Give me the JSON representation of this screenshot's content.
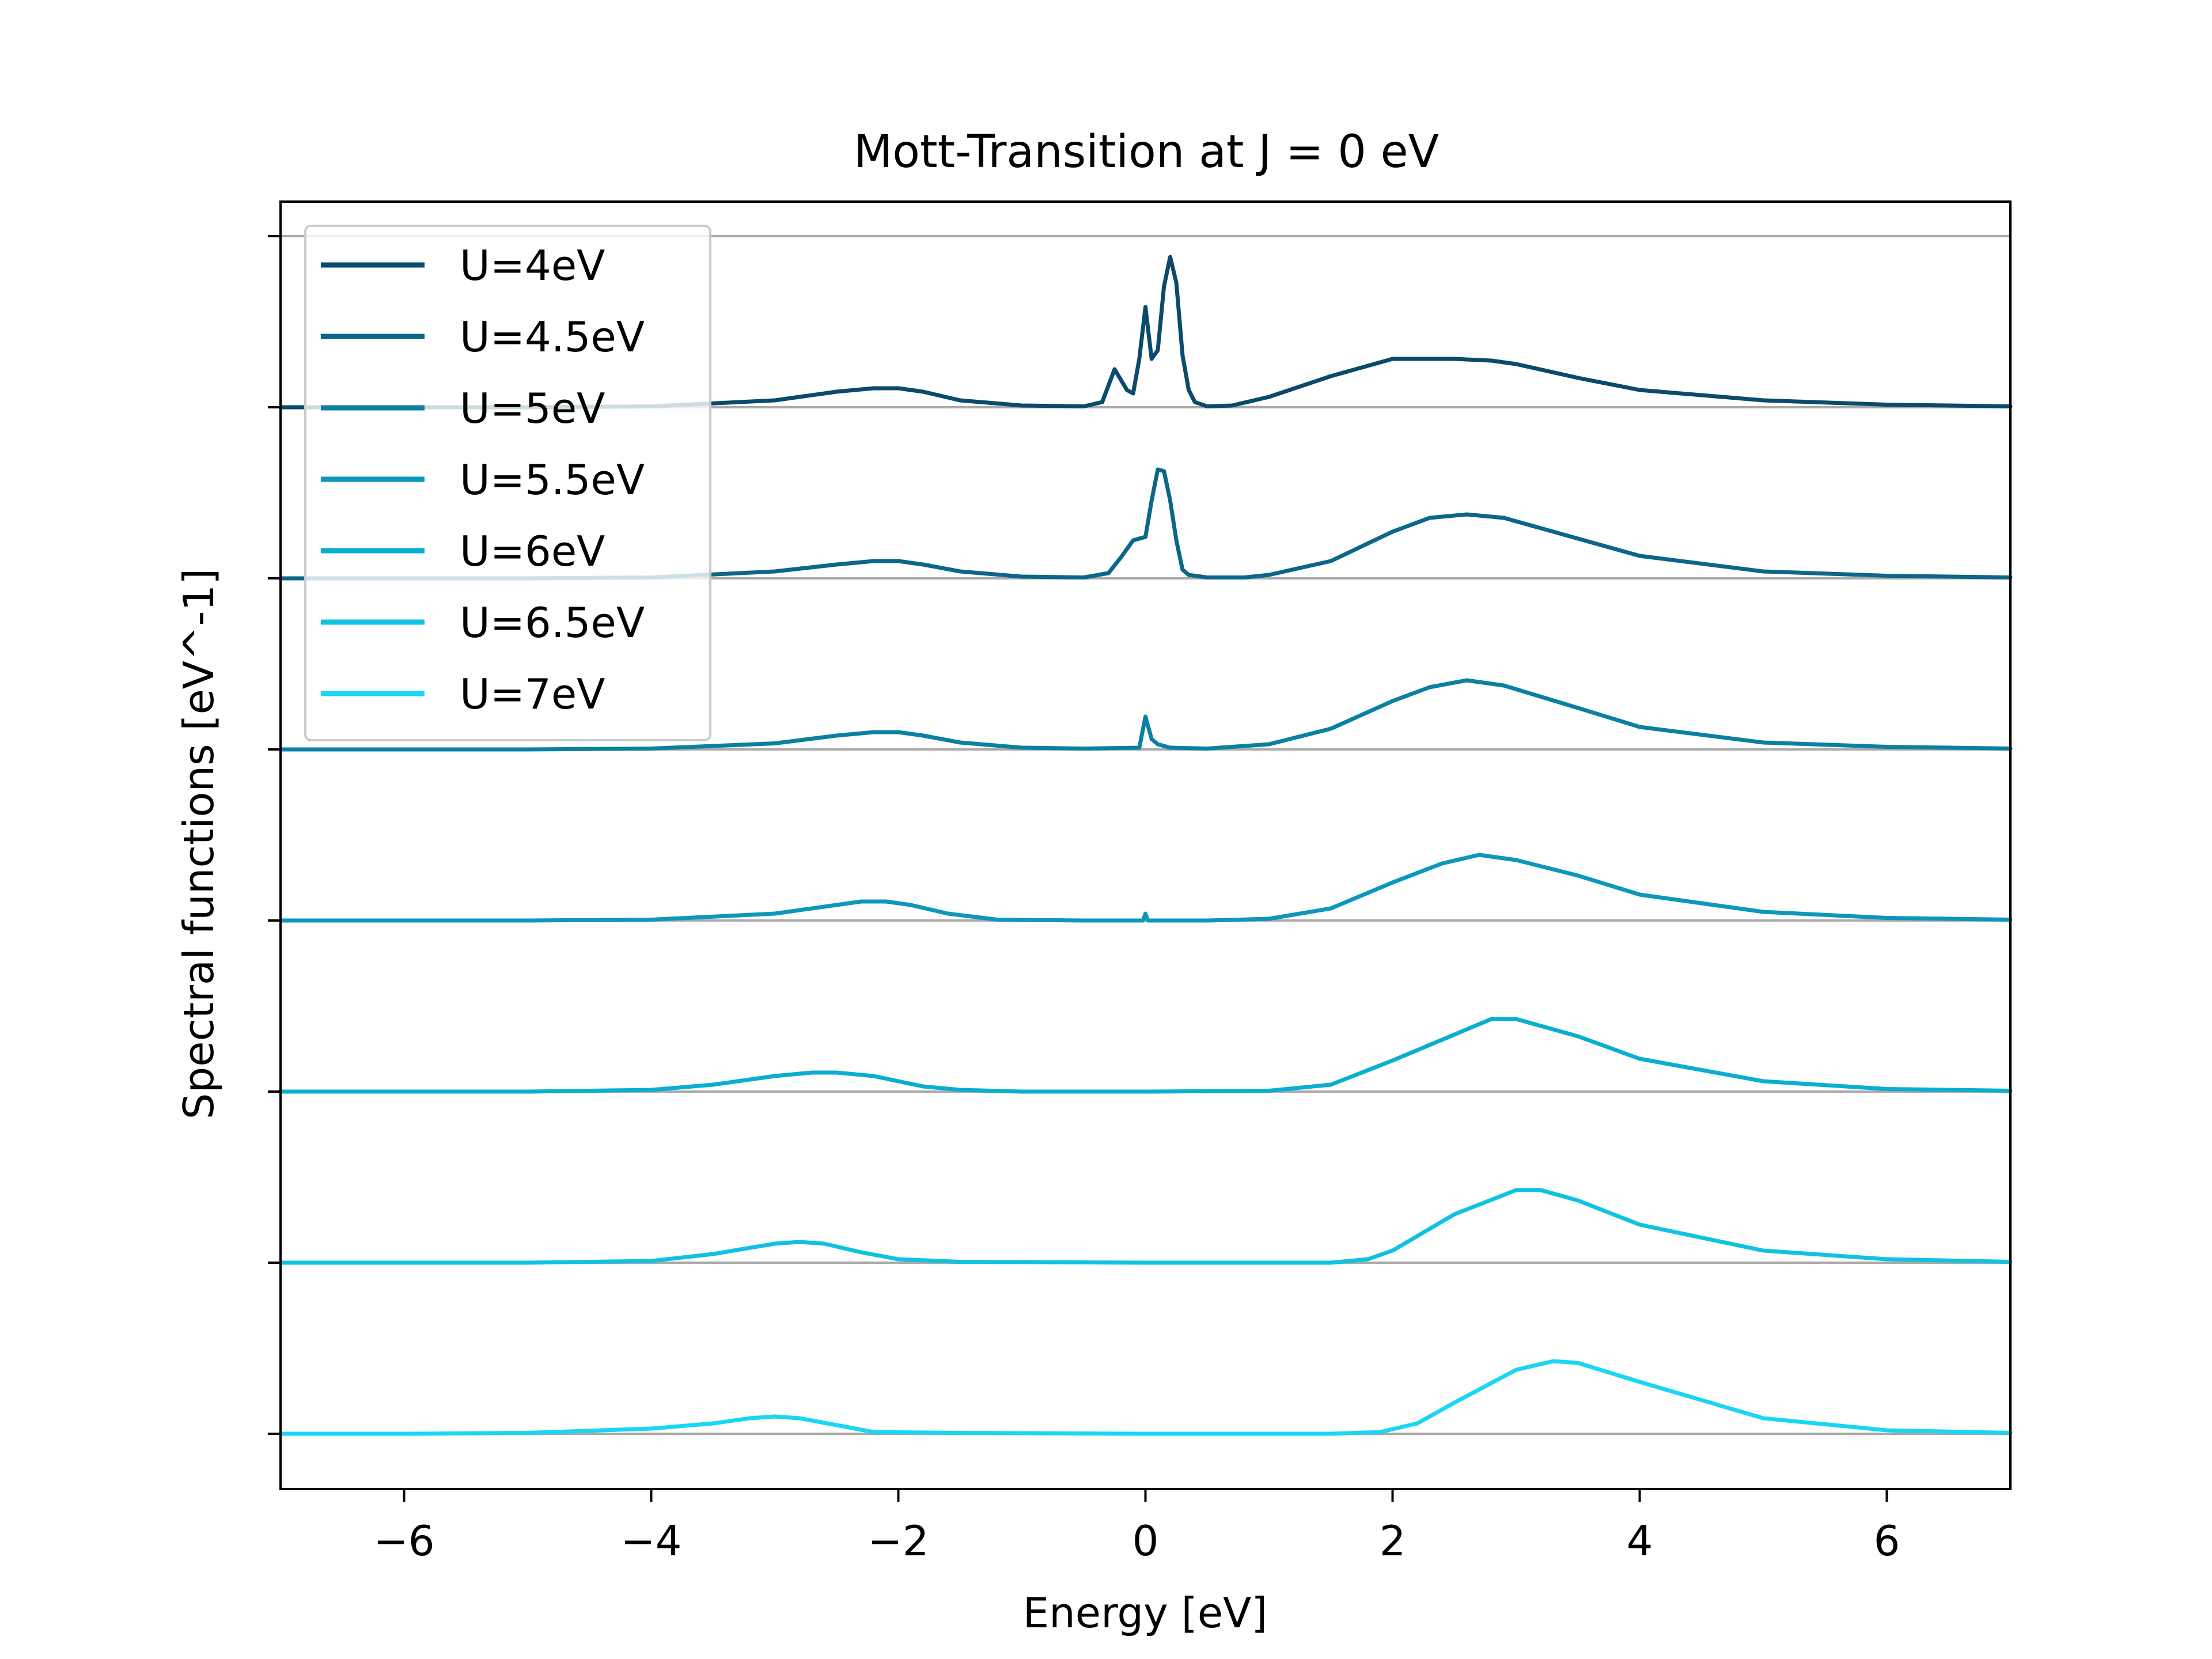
{
  "chart_data": {
    "type": "line",
    "title": "Mott-Transition at J = 0 eV",
    "xlabel": "Energy [eV]",
    "ylabel": "Spectral functions [eV^-1]",
    "xlim": [
      -7,
      7
    ],
    "xticks": [
      -6,
      -4,
      -2,
      0,
      2,
      4,
      6
    ],
    "xtick_labels": [
      "−6",
      "−4",
      "−2",
      "0",
      "2",
      "4",
      "6"
    ],
    "y_tick_labels_shown": false,
    "curves_vertically_offset": true,
    "baseline_color": "#aaaaaa",
    "grid": false,
    "legend_position": "upper-left",
    "series": [
      {
        "name": "U=4eV",
        "color": "#0a4a6b",
        "x": [
          -7,
          -6,
          -5,
          -4,
          -3,
          -2.5,
          -2.2,
          -2.0,
          -1.8,
          -1.5,
          -1.0,
          -0.5,
          -0.35,
          -0.25,
          -0.15,
          -0.1,
          -0.05,
          0.0,
          0.05,
          0.1,
          0.15,
          0.2,
          0.25,
          0.3,
          0.35,
          0.4,
          0.5,
          0.7,
          1.0,
          1.5,
          2.0,
          2.5,
          2.8,
          3.0,
          3.5,
          4.0,
          5.0,
          6.0,
          7.0
        ],
        "y": [
          0,
          0,
          0,
          0.005,
          0.04,
          0.09,
          0.11,
          0.11,
          0.09,
          0.04,
          0.01,
          0.005,
          0.03,
          0.22,
          0.1,
          0.08,
          0.28,
          0.58,
          0.28,
          0.33,
          0.7,
          0.87,
          0.72,
          0.3,
          0.1,
          0.03,
          0.005,
          0.01,
          0.06,
          0.18,
          0.28,
          0.28,
          0.27,
          0.25,
          0.17,
          0.1,
          0.04,
          0.015,
          0.005
        ]
      },
      {
        "name": "U=4.5eV",
        "color": "#0b6688",
        "x": [
          -7,
          -6,
          -5,
          -4,
          -3,
          -2.5,
          -2.2,
          -2.0,
          -1.8,
          -1.5,
          -1.0,
          -0.5,
          -0.3,
          -0.2,
          -0.1,
          0.0,
          0.05,
          0.1,
          0.15,
          0.2,
          0.25,
          0.3,
          0.35,
          0.5,
          0.8,
          1.0,
          1.5,
          2.0,
          2.3,
          2.6,
          2.9,
          3.5,
          4.0,
          5.0,
          6.0,
          7.0
        ],
        "y": [
          0,
          0,
          0,
          0.005,
          0.04,
          0.08,
          0.1,
          0.1,
          0.08,
          0.04,
          0.01,
          0.005,
          0.03,
          0.12,
          0.22,
          0.24,
          0.45,
          0.63,
          0.62,
          0.45,
          0.22,
          0.05,
          0.02,
          0.005,
          0.005,
          0.02,
          0.1,
          0.27,
          0.35,
          0.37,
          0.35,
          0.23,
          0.13,
          0.04,
          0.015,
          0.005
        ]
      },
      {
        "name": "U=5eV",
        "color": "#0a80a3",
        "x": [
          -7,
          -6,
          -5,
          -4,
          -3,
          -2.5,
          -2.2,
          -2.0,
          -1.8,
          -1.5,
          -1.0,
          -0.5,
          -0.05,
          0.0,
          0.05,
          0.1,
          0.2,
          0.5,
          1.0,
          1.5,
          2.0,
          2.3,
          2.6,
          2.9,
          3.5,
          4.0,
          5.0,
          6.0,
          7.0
        ],
        "y": [
          0,
          0,
          0,
          0.005,
          0.035,
          0.08,
          0.1,
          0.1,
          0.08,
          0.04,
          0.01,
          0.005,
          0.01,
          0.19,
          0.06,
          0.03,
          0.01,
          0.005,
          0.03,
          0.12,
          0.28,
          0.36,
          0.4,
          0.37,
          0.24,
          0.13,
          0.04,
          0.015,
          0.005
        ]
      },
      {
        "name": "U=5.5eV",
        "color": "#0b98bb",
        "x": [
          -7,
          -6,
          -5,
          -4,
          -3,
          -2.6,
          -2.3,
          -2.1,
          -1.9,
          -1.6,
          -1.2,
          -0.5,
          -0.02,
          0.0,
          0.02,
          0.5,
          1.0,
          1.5,
          2.0,
          2.4,
          2.7,
          3.0,
          3.5,
          4.0,
          5.0,
          6.0,
          7.0
        ],
        "y": [
          0,
          0,
          0,
          0.005,
          0.04,
          0.08,
          0.11,
          0.11,
          0.09,
          0.04,
          0.005,
          0,
          0,
          0.04,
          0,
          0,
          0.01,
          0.07,
          0.22,
          0.33,
          0.38,
          0.35,
          0.26,
          0.15,
          0.05,
          0.015,
          0.005
        ]
      },
      {
        "name": "U=6eV",
        "color": "#0aaed0",
        "x": [
          -7,
          -6,
          -5,
          -4,
          -3.5,
          -3.0,
          -2.7,
          -2.5,
          -2.2,
          -1.8,
          -1.5,
          -1.0,
          0,
          1.0,
          1.5,
          2.0,
          2.5,
          2.8,
          3.0,
          3.5,
          4.0,
          5.0,
          6.0,
          7.0
        ],
        "y": [
          0,
          0,
          0,
          0.01,
          0.04,
          0.09,
          0.11,
          0.11,
          0.09,
          0.03,
          0.01,
          0,
          0,
          0.005,
          0.04,
          0.18,
          0.33,
          0.42,
          0.42,
          0.32,
          0.19,
          0.06,
          0.015,
          0.005
        ]
      },
      {
        "name": "U=6.5eV",
        "color": "#10c2e2",
        "x": [
          -7,
          -6,
          -5,
          -4,
          -3.5,
          -3.0,
          -2.8,
          -2.6,
          -2.3,
          -2.0,
          -1.5,
          0,
          1.5,
          1.8,
          2.0,
          2.5,
          3.0,
          3.2,
          3.5,
          4.0,
          5.0,
          6.0,
          7.0
        ],
        "y": [
          0,
          0,
          0,
          0.01,
          0.05,
          0.11,
          0.12,
          0.11,
          0.06,
          0.02,
          0.005,
          0,
          0,
          0.02,
          0.07,
          0.28,
          0.42,
          0.42,
          0.36,
          0.22,
          0.07,
          0.02,
          0.005
        ]
      },
      {
        "name": "U=7eV",
        "color": "#18d6f4",
        "x": [
          -7,
          -6,
          -5,
          -4,
          -3.5,
          -3.2,
          -3.0,
          -2.8,
          -2.5,
          -2.2,
          -1.5,
          0,
          1.5,
          1.9,
          2.2,
          2.5,
          3.0,
          3.3,
          3.5,
          4.0,
          5.0,
          6.0,
          7.0
        ],
        "y": [
          0,
          0,
          0.005,
          0.03,
          0.06,
          0.09,
          0.1,
          0.09,
          0.05,
          0.01,
          0.005,
          0,
          0,
          0.01,
          0.06,
          0.18,
          0.37,
          0.42,
          0.41,
          0.3,
          0.09,
          0.02,
          0.005
        ]
      }
    ]
  }
}
